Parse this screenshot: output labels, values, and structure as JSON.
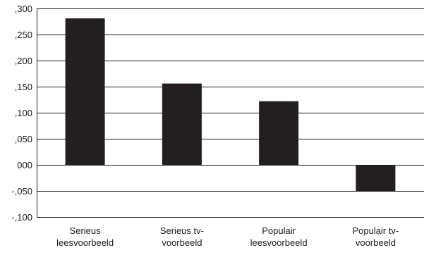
{
  "chart_data": {
    "type": "bar",
    "title": "",
    "xlabel": "",
    "ylabel": "",
    "categories": [
      [
        "Serieus",
        "leesvoorbeeld"
      ],
      [
        "Serieus tv-",
        "voorbeeld"
      ],
      [
        "Populair",
        "leesvoorbeeld"
      ],
      [
        "Populair tv-",
        "voorbeeld"
      ]
    ],
    "values": [
      0.281,
      0.156,
      0.122,
      -0.05
    ],
    "ylim": [
      -0.1,
      0.3
    ],
    "yticks": [
      0.3,
      0.25,
      0.2,
      0.15,
      0.1,
      0.05,
      0.0,
      -0.05,
      -0.1
    ],
    "ytick_labels": [
      ",300",
      ",250",
      ",200",
      ",150",
      ",100",
      ",050",
      "000",
      "-,050",
      "-,100"
    ],
    "grid": true,
    "legend": "none",
    "bar_color": "#231f20",
    "grid_color": "#1a1a1a"
  }
}
